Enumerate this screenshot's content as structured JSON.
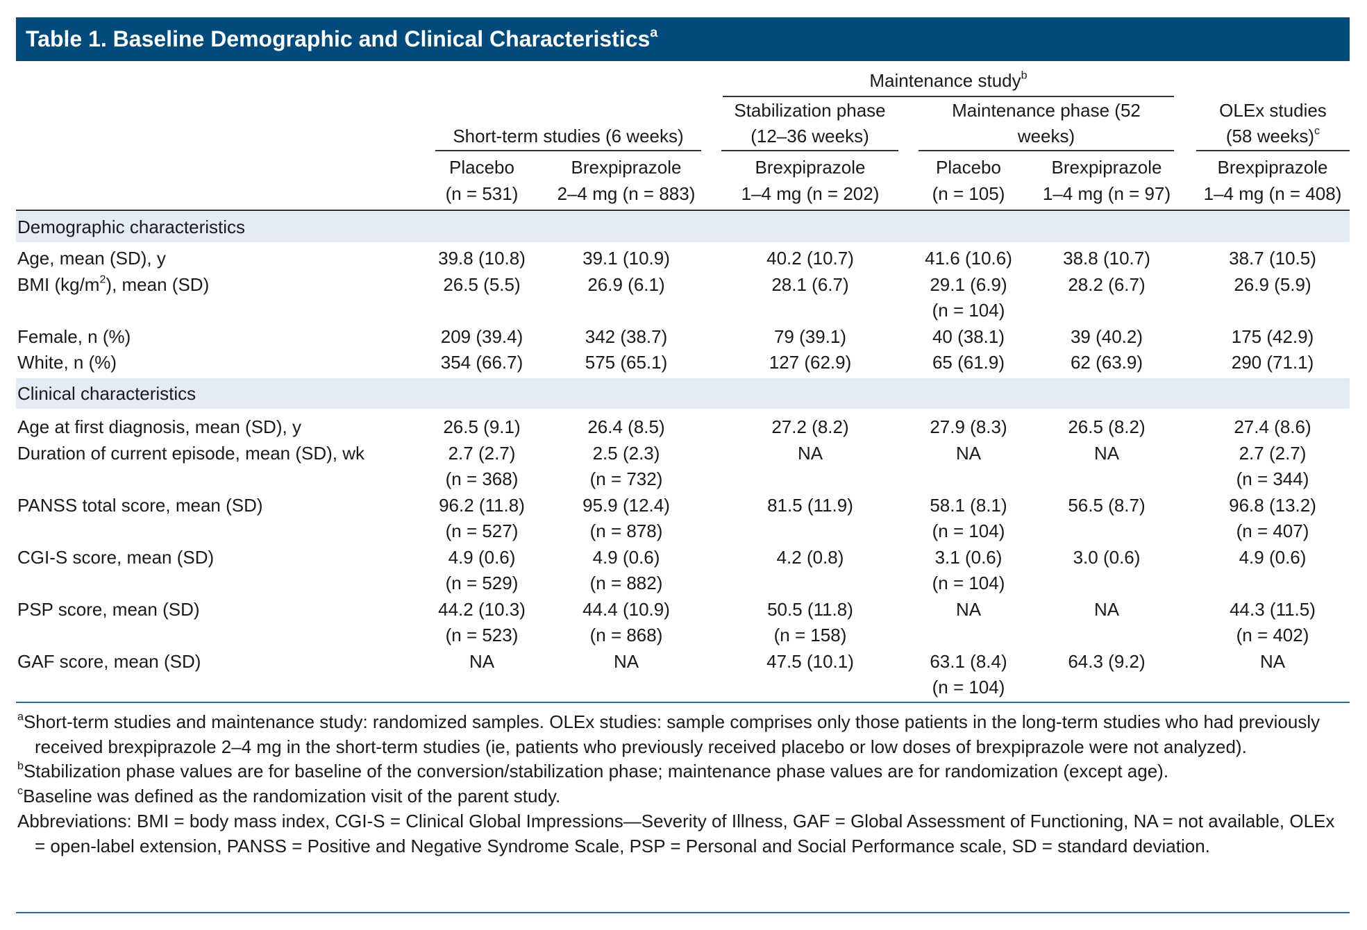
{
  "title": "Table 1. Baseline Demographic and Clinical Characteristics",
  "title_sup": "a",
  "header": {
    "group": {
      "text": "Maintenance study",
      "sup": "b"
    },
    "studies": [
      {
        "lines": [
          "Short-term studies (6 weeks)"
        ]
      },
      {
        "lines": [
          "Stabilization phase",
          "(12–36 weeks)"
        ]
      },
      {
        "lines": [
          "Maintenance phase (52",
          "weeks)"
        ]
      },
      {
        "lines": [
          "OLEx studies",
          "(58 weeks)"
        ],
        "sup": "c"
      }
    ],
    "columns": [
      [
        "Placebo",
        "(n = 531)"
      ],
      [
        "Brexpiprazole",
        "2–4 mg (n = 883)"
      ],
      [
        "Brexpiprazole",
        "1–4 mg (n = 202)"
      ],
      [
        "Placebo",
        "(n = 105)"
      ],
      [
        "Brexpiprazole",
        "1–4 mg (n = 97)"
      ],
      [
        "Brexpiprazole",
        "1–4 mg (n = 408)"
      ]
    ]
  },
  "sections": [
    {
      "label": "Demographic characteristics",
      "rows": [
        {
          "label": "Age, mean (SD), y",
          "cells": [
            [
              "39.8 (10.8)"
            ],
            [
              "39.1 (10.9)"
            ],
            [
              "40.2 (10.7)"
            ],
            [
              "41.6 (10.6)"
            ],
            [
              "38.8 (10.7)"
            ],
            [
              "38.7 (10.5)"
            ]
          ]
        },
        {
          "label": "BMI (kg/m",
          "label_sup": "2",
          "label_rest": "), mean (SD)",
          "cells": [
            [
              "26.5 (5.5)"
            ],
            [
              "26.9 (6.1)"
            ],
            [
              "28.1 (6.7)"
            ],
            [
              "29.1 (6.9)",
              "(n = 104)"
            ],
            [
              "28.2 (6.7)"
            ],
            [
              "26.9 (5.9)"
            ]
          ]
        },
        {
          "label": "Female, n (%)",
          "cells": [
            [
              "209 (39.4)"
            ],
            [
              "342 (38.7)"
            ],
            [
              "79 (39.1)"
            ],
            [
              "40 (38.1)"
            ],
            [
              "39 (40.2)"
            ],
            [
              "175 (42.9)"
            ]
          ]
        },
        {
          "label": "White, n (%)",
          "cells": [
            [
              "354 (66.7)"
            ],
            [
              "575 (65.1)"
            ],
            [
              "127 (62.9)"
            ],
            [
              "65 (61.9)"
            ],
            [
              "62 (63.9)"
            ],
            [
              "290 (71.1)"
            ]
          ]
        }
      ]
    },
    {
      "label": "Clinical characteristics",
      "rows": [
        {
          "label": "Age at first diagnosis, mean (SD), y",
          "cells": [
            [
              "26.5 (9.1)"
            ],
            [
              "26.4 (8.5)"
            ],
            [
              "27.2 (8.2)"
            ],
            [
              "27.9 (8.3)"
            ],
            [
              "26.5 (8.2)"
            ],
            [
              "27.4 (8.6)"
            ]
          ]
        },
        {
          "label": "Duration of current episode, mean (SD), wk",
          "cells": [
            [
              "2.7 (2.7)",
              "(n = 368)"
            ],
            [
              "2.5 (2.3)",
              "(n = 732)"
            ],
            [
              "NA"
            ],
            [
              "NA"
            ],
            [
              "NA"
            ],
            [
              "2.7 (2.7)",
              "(n = 344)"
            ]
          ]
        },
        {
          "label": "PANSS total score, mean (SD)",
          "cells": [
            [
              "96.2 (11.8)",
              "(n = 527)"
            ],
            [
              "95.9 (12.4)",
              "(n = 878)"
            ],
            [
              "81.5 (11.9)"
            ],
            [
              "58.1 (8.1)",
              "(n = 104)"
            ],
            [
              "56.5 (8.7)"
            ],
            [
              "96.8 (13.2)",
              "(n = 407)"
            ]
          ]
        },
        {
          "label": "CGI-S score, mean (SD)",
          "cells": [
            [
              "4.9 (0.6)",
              "(n = 529)"
            ],
            [
              "4.9 (0.6)",
              "(n = 882)"
            ],
            [
              "4.2 (0.8)"
            ],
            [
              "3.1 (0.6)",
              "(n = 104)"
            ],
            [
              "3.0 (0.6)"
            ],
            [
              "4.9 (0.6)"
            ]
          ]
        },
        {
          "label": "PSP score, mean (SD)",
          "cells": [
            [
              "44.2 (10.3)",
              "(n = 523)"
            ],
            [
              "44.4 (10.9)",
              "(n = 868)"
            ],
            [
              "50.5 (11.8)",
              "(n = 158)"
            ],
            [
              "NA"
            ],
            [
              "NA"
            ],
            [
              "44.3 (11.5)",
              "(n = 402)"
            ]
          ]
        },
        {
          "label": "GAF score, mean (SD)",
          "cells": [
            [
              "NA"
            ],
            [
              "NA"
            ],
            [
              "47.5 (10.1)"
            ],
            [
              "63.1 (8.4)",
              "(n = 104)"
            ],
            [
              "64.3 (9.2)"
            ],
            [
              "NA"
            ]
          ]
        }
      ]
    }
  ],
  "footnotes": [
    {
      "marker": "a",
      "text": "Short-term studies and maintenance study: randomized samples. OLEx studies: sample comprises only those patients in the long-term studies who had previously received brexpiprazole 2–4 mg in the short-term studies (ie, patients who previously received placebo or low doses of brexpiprazole were not analyzed)."
    },
    {
      "marker": "b",
      "text": "Stabilization phase values are for baseline of the conversion/stabilization phase; maintenance phase values are for randomization (except age)."
    },
    {
      "marker": "c",
      "text": "Baseline was defined as the randomization visit of the parent study."
    }
  ],
  "abbreviations": "Abbreviations: BMI = body mass index, CGI-S = Clinical Global Impressions—Severity of Illness, GAF = Global Assessment of Functioning, NA = not available, OLEx = open-label extension, PANSS = Positive and Negative Syndrome Scale, PSP = Personal and Social Performance scale, SD = standard deviation."
}
